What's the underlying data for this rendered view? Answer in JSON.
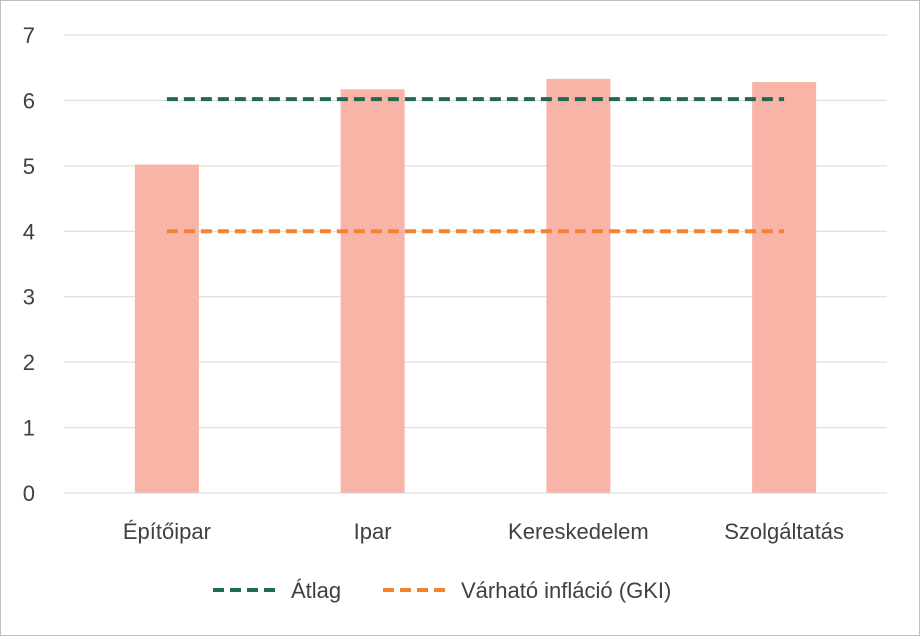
{
  "chart_data": {
    "type": "bar",
    "title": "",
    "xlabel": "",
    "ylabel": "",
    "categories": [
      "Építőipar",
      "Ipar",
      "Kereskedelem",
      "Szolgáltatás"
    ],
    "series": [
      {
        "type": "bar",
        "values": [
          5.02,
          6.17,
          6.33,
          6.28
        ]
      },
      {
        "name": "Átlag",
        "type": "line",
        "style": "dashed",
        "values": [
          6.02,
          6.02,
          6.02,
          6.02
        ]
      },
      {
        "name": "Várható infláció (GKI)",
        "type": "line",
        "style": "dashed",
        "values": [
          4.0,
          4.0,
          4.0,
          4.0
        ]
      }
    ],
    "ylim": [
      0,
      7
    ],
    "yticks": [
      "0",
      "1",
      "2",
      "3",
      "4",
      "5",
      "6",
      "7"
    ],
    "grid": true,
    "legend_position": "bottom",
    "colors": {
      "bars": "#f8b4a6",
      "average_line": "#1e6b52",
      "inflation_line": "#f58233",
      "grid": "#d9d9d9"
    }
  }
}
